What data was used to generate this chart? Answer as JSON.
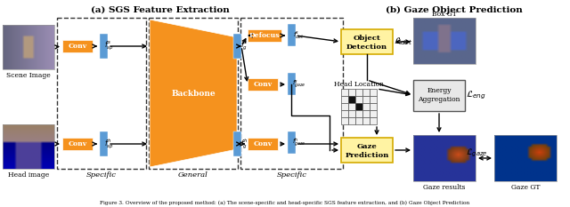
{
  "title_a": "(a) SGS Feature Extraction",
  "title_b": "(b) Gaze Object Prediction",
  "orange": "#F5921E",
  "blue": "#5B9BD5",
  "yellow_box_fc": "#FFF3A3",
  "yellow_box_ec": "#D4AA00",
  "gray_box_fc": "#E0E0E0",
  "gray_box_ec": "#888888",
  "caption": "Figure 3. Overview of the proposed method: (a) The scene-specific and head-specific SGS feature extraction, and (b) Gaze Object Prediction"
}
